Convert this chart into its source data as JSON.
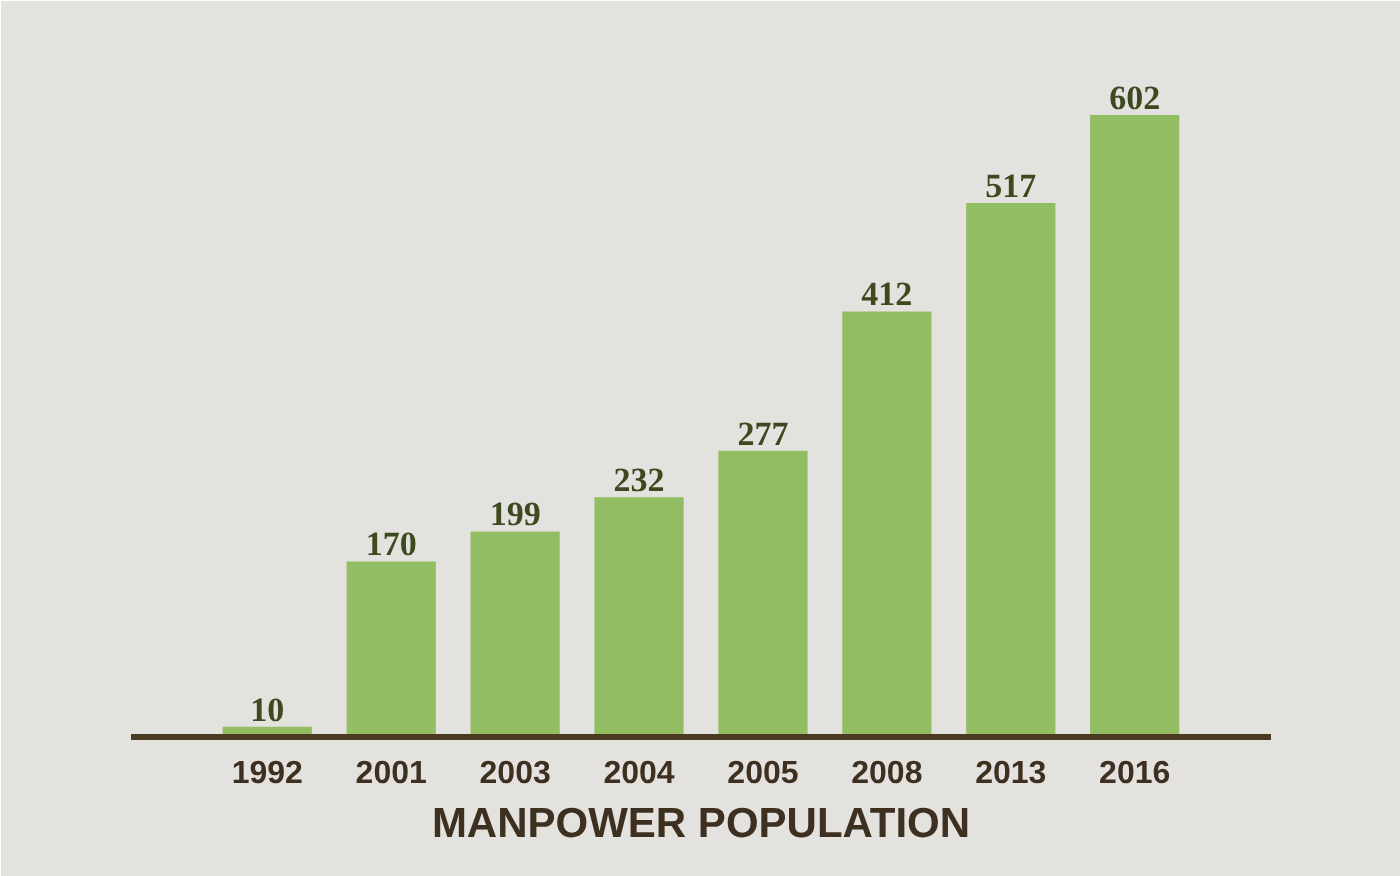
{
  "chart_data": {
    "type": "bar",
    "xlabel": "MANPOWER POPULATION",
    "categories": [
      "1992",
      "2001",
      "2003",
      "2004",
      "2005",
      "2008",
      "2013",
      "2016"
    ],
    "values": [
      10,
      170,
      199,
      232,
      277,
      412,
      517,
      602
    ],
    "color": "#93bd63",
    "data_labels": true,
    "grid": false
  }
}
